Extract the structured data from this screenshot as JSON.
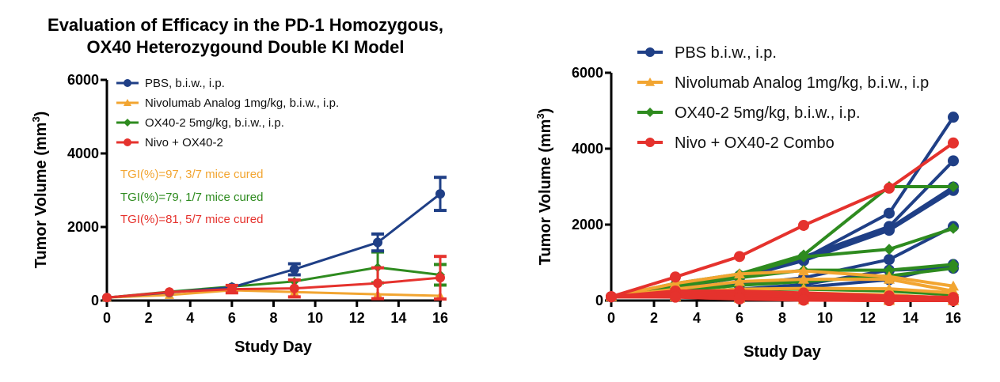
{
  "chart_data": [
    {
      "type": "line",
      "title": "Evaluation of Efficacy in the PD-1 Homozygous, OX40 Heterozygound Double KI Model",
      "title_lines": [
        "Evaluation of Efficacy in the PD-1 Homozygous,",
        "OX40 Heterozygound Double KI Model"
      ],
      "xlabel": "Study Day",
      "ylabel": "Tumor Volume (mm³)",
      "ylabel_main": "Tumor Volume (mm",
      "ylabel_sup": "3",
      "ylabel_close": ")",
      "xlim": [
        0,
        16
      ],
      "ylim": [
        0,
        6000
      ],
      "xticks": [
        0,
        2,
        4,
        6,
        8,
        10,
        12,
        14,
        16
      ],
      "yticks": [
        0,
        2000,
        4000,
        6000
      ],
      "legend_position": "top-left",
      "x": [
        0,
        3,
        6,
        9,
        13,
        16
      ],
      "series": [
        {
          "name": "PBS, b.i.w., i.p.",
          "color": "#1f3f86",
          "marker": "circle",
          "values": [
            80,
            220,
            360,
            850,
            1580,
            2900
          ],
          "errors": [
            0,
            0,
            0,
            150,
            230,
            450
          ]
        },
        {
          "name": "Nivolumab Analog 1mg/kg, b.i.w., i.p.",
          "color": "#f2a531",
          "marker": "triangle",
          "values": [
            80,
            150,
            280,
            230,
            170,
            130
          ],
          "errors": [
            0,
            0,
            0,
            0,
            0,
            0
          ]
        },
        {
          "name": "OX40-2 5mg/kg, b.i.w., i.p.",
          "color": "#2e8b1f",
          "marker": "diamond",
          "values": [
            80,
            240,
            380,
            520,
            900,
            700
          ],
          "errors": [
            0,
            0,
            0,
            0,
            420,
            280
          ]
        },
        {
          "name": "Nivo + OX40-2",
          "color": "#e5322d",
          "marker": "circle",
          "values": [
            80,
            230,
            310,
            330,
            470,
            620
          ],
          "errors": [
            0,
            0,
            100,
            230,
            420,
            580
          ]
        }
      ],
      "annotations": [
        {
          "text": "TGI(%)=97, 3/7 mice cured",
          "color": "#f2a531"
        },
        {
          "text": "TGI(%)=79, 1/7 mice cured",
          "color": "#2e8b1f"
        },
        {
          "text": "TGI(%)=81, 5/7 mice cured",
          "color": "#e5322d"
        }
      ]
    },
    {
      "type": "line",
      "title": "",
      "xlabel": "Study Day",
      "ylabel": "Tumor Volume (mm³)",
      "ylabel_main": "Tumor Volume (mm",
      "ylabel_sup": "3",
      "ylabel_close": ")",
      "xlim": [
        0,
        16
      ],
      "ylim": [
        0,
        6000
      ],
      "xticks": [
        0,
        2,
        4,
        6,
        8,
        10,
        12,
        14,
        16
      ],
      "yticks": [
        0,
        2000,
        4000,
        6000
      ],
      "legend_position": "top",
      "x": [
        0,
        3,
        6,
        9,
        13,
        16
      ],
      "groups": [
        {
          "name": "PBS b.i.w., i.p.",
          "color": "#1f3f86",
          "marker": "circle",
          "individuals": [
            [
              100,
              350,
              650,
              1100,
              2300,
              4830
            ],
            [
              100,
              400,
              650,
              1150,
              1950,
              3680
            ],
            [
              100,
              380,
              620,
              1100,
              1900,
              2990
            ],
            [
              100,
              350,
              600,
              1050,
              1850,
              2900
            ],
            [
              100,
              250,
              420,
              600,
              1080,
              1950
            ],
            [
              100,
              200,
              300,
              420,
              800,
              850
            ],
            [
              100,
              150,
              250,
              350,
              550,
              950
            ]
          ]
        },
        {
          "name": "Nivolumab Analog 1mg/kg, b.i.w., i.p",
          "color": "#f2a531",
          "marker": "triangle",
          "individuals": [
            [
              100,
              450,
              700,
              780,
              630,
              380
            ],
            [
              100,
              300,
              500,
              560,
              560,
              250
            ],
            [
              100,
              200,
              300,
              320,
              310,
              200
            ],
            [
              100,
              150,
              200,
              200,
              150,
              60
            ],
            [
              100,
              120,
              100,
              80,
              40,
              20
            ],
            [
              100,
              100,
              80,
              40,
              10,
              0
            ],
            [
              100,
              100,
              60,
              20,
              0,
              0
            ]
          ]
        },
        {
          "name": "OX40-2 5mg/kg, b.i.w., i.p.",
          "color": "#2e8b1f",
          "marker": "diamond",
          "individuals": [
            [
              100,
              450,
              700,
              1200,
              3000,
              3000
            ],
            [
              100,
              400,
              650,
              1150,
              1350,
              1900
            ],
            [
              100,
              380,
              600,
              800,
              800,
              950
            ],
            [
              100,
              250,
              400,
              500,
              650,
              850
            ],
            [
              100,
              200,
              300,
              300,
              250,
              150
            ],
            [
              100,
              150,
              180,
              150,
              100,
              60
            ],
            [
              100,
              120,
              100,
              60,
              20,
              0
            ]
          ]
        },
        {
          "name": "Nivo + OX40-2 Combo",
          "color": "#e5322d",
          "marker": "circle",
          "individuals": [
            [
              100,
              620,
              1160,
              1980,
              2960,
              4150
            ],
            [
              100,
              250,
              250,
              200,
              120,
              80
            ],
            [
              100,
              200,
              180,
              120,
              60,
              30
            ],
            [
              100,
              150,
              120,
              80,
              30,
              10
            ],
            [
              100,
              120,
              80,
              40,
              10,
              0
            ],
            [
              100,
              100,
              60,
              20,
              0,
              0
            ],
            [
              100,
              90,
              40,
              10,
              0,
              0
            ]
          ]
        }
      ]
    }
  ]
}
